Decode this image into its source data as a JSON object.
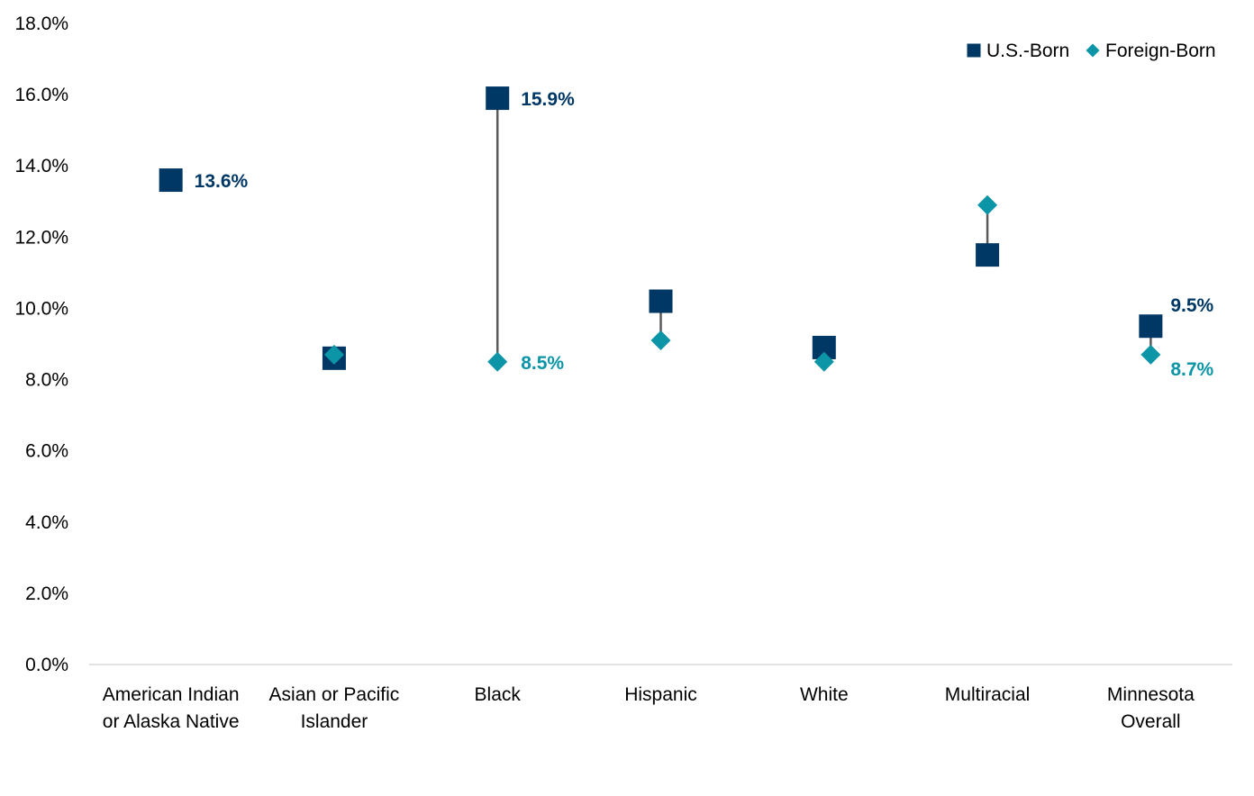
{
  "chart_data": {
    "type": "scatter",
    "categories": [
      [
        "American Indian",
        "or Alaska Native"
      ],
      [
        "Asian or Pacific",
        "Islander"
      ],
      [
        "Black"
      ],
      [
        "Hispanic"
      ],
      [
        "White"
      ],
      [
        "Multiracial"
      ],
      [
        "Minnesota",
        "Overall"
      ]
    ],
    "series": [
      {
        "name": "U.S.-Born",
        "marker": "square",
        "color": "#003865",
        "values": [
          13.6,
          8.6,
          15.9,
          10.2,
          8.9,
          11.5,
          9.5
        ]
      },
      {
        "name": "Foreign-Born",
        "marker": "diamond",
        "color": "#0B95A7",
        "values": [
          null,
          8.7,
          8.5,
          9.1,
          8.5,
          12.9,
          8.7
        ]
      }
    ],
    "data_labels": [
      {
        "series": 0,
        "category": 0,
        "text": "13.6%"
      },
      {
        "series": 0,
        "category": 2,
        "text": "15.9%"
      },
      {
        "series": 1,
        "category": 2,
        "text": "8.5%"
      },
      {
        "series": 0,
        "category": 6,
        "text": "9.5%"
      },
      {
        "series": 1,
        "category": 6,
        "text": "8.7%"
      }
    ],
    "yticks": [
      "0.0%",
      "2.0%",
      "4.0%",
      "6.0%",
      "8.0%",
      "10.0%",
      "12.0%",
      "14.0%",
      "16.0%",
      "18.0%"
    ],
    "ylim": [
      0,
      18
    ],
    "connector_color": "#595959",
    "axis_color": "#D9D9D9",
    "grid": false,
    "legend_position": "top-right"
  }
}
